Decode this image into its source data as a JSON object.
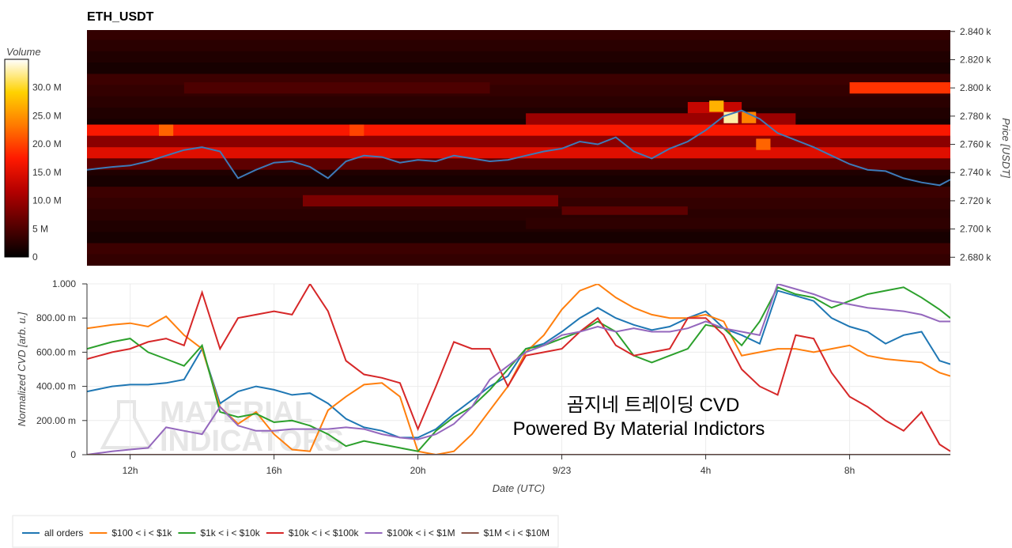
{
  "title": "ETH_USDT",
  "colorbar": {
    "label": "Volume",
    "ticks": [
      "0",
      "5 M",
      "10.0 M",
      "15.0 M",
      "20.0 M",
      "25.0 M",
      "30.0 M"
    ],
    "tick_values": [
      0,
      5,
      10,
      15,
      20,
      25,
      30
    ],
    "max": 35,
    "scale": [
      "#000000",
      "#5a0000",
      "#b40000",
      "#ff1a00",
      "#ff7a00",
      "#ffd200",
      "#ffffff"
    ]
  },
  "heatmap": {
    "ylabel": "Price [USDT]",
    "yticks": [
      "2.840 k",
      "2.820 k",
      "2.800 k",
      "2.780 k",
      "2.760 k",
      "2.740 k",
      "2.720 k",
      "2.700 k",
      "2.680 k"
    ],
    "ytick_values": [
      2840,
      2820,
      2800,
      2780,
      2760,
      2740,
      2720,
      2700,
      2680
    ],
    "ylim": [
      2674,
      2841
    ],
    "price_series_color": "#3d7ab8"
  },
  "cvd": {
    "ylabel": "Normalized CVD [arb. u.]",
    "yticks": [
      "0",
      "200.00 m",
      "400.00 m",
      "600.00 m",
      "800.00 m",
      "1.000"
    ],
    "ytick_values": [
      0,
      0.2,
      0.4,
      0.6,
      0.8,
      1.0
    ],
    "ylim": [
      0,
      1
    ]
  },
  "xaxis": {
    "label": "Date (UTC)",
    "ticks": [
      "12h",
      "16h",
      "20h",
      "9/23",
      "4h",
      "8h"
    ],
    "tick_hours": [
      12,
      16,
      20,
      24,
      28,
      32
    ],
    "xlim": [
      10.8,
      34.8
    ]
  },
  "legend": {
    "placement": "bottom-left",
    "items": [
      {
        "label": "all orders",
        "color": "#1f77b4"
      },
      {
        "label": "$100 < i < $1k",
        "color": "#ff7f0e"
      },
      {
        "label": "$1k < i < $10k",
        "color": "#2ca02c"
      },
      {
        "label": "$10k < i < $100k",
        "color": "#d62728"
      },
      {
        "label": "$100k < i < $1M",
        "color": "#9467bd"
      },
      {
        "label": "$1M < i < $10M",
        "color": "#8c564b"
      }
    ]
  },
  "annotation": {
    "line1": "곰지네 트레이딩 CVD",
    "line2": "Powered By Material Indictors"
  },
  "watermark": {
    "line1": "MATERIAL",
    "line2": "INDICATORS"
  },
  "chart_data": [
    {
      "type": "heatmap",
      "title": "ETH_USDT",
      "colorbar_label": "Volume",
      "ylabel": "Price [USDT]",
      "x_hours": [
        10.8,
        11.5,
        12.0,
        12.5,
        13.0,
        13.5,
        14.0,
        14.5,
        15.0,
        15.5,
        16.0,
        16.5,
        17.0,
        17.5,
        18.0,
        18.5,
        19.0,
        19.5,
        20.0,
        20.5,
        21.0,
        21.5,
        22.0,
        22.5,
        23.0,
        23.5,
        24.0,
        24.5,
        25.0,
        25.5,
        26.0,
        26.5,
        27.0,
        27.5,
        28.0,
        28.5,
        29.0,
        29.5,
        30.0,
        30.5,
        31.0,
        31.5,
        32.0,
        32.5,
        33.0,
        33.5,
        34.0,
        34.5,
        34.8
      ],
      "price": [
        2742,
        2744,
        2745,
        2748,
        2752,
        2756,
        2758,
        2755,
        2736,
        2742,
        2747,
        2748,
        2744,
        2736,
        2748,
        2752,
        2751,
        2747,
        2749,
        2748,
        2752,
        2750,
        2748,
        2749,
        2752,
        2755,
        2757,
        2762,
        2760,
        2765,
        2755,
        2750,
        2757,
        2762,
        2770,
        2780,
        2784,
        2778,
        2768,
        2763,
        2758,
        2752,
        2746,
        2742,
        2741,
        2736,
        2733,
        2731,
        2735
      ],
      "bands": [
        {
          "from": 2766,
          "to": 2774,
          "x_from": 10.8,
          "x_to": 34.8,
          "level": 17
        },
        {
          "from": 2758,
          "to": 2766,
          "x_from": 10.8,
          "x_to": 34.8,
          "level": 9
        },
        {
          "from": 2750,
          "to": 2758,
          "x_from": 10.8,
          "x_to": 34.8,
          "level": 15
        },
        {
          "from": 2742,
          "to": 2750,
          "x_from": 10.8,
          "x_to": 34.8,
          "level": 6
        },
        {
          "from": 2774,
          "to": 2782,
          "x_from": 23.0,
          "x_to": 30.5,
          "level": 10
        },
        {
          "from": 2782,
          "to": 2790,
          "x_from": 27.5,
          "x_to": 29.0,
          "level": 13
        },
        {
          "from": 2796,
          "to": 2804,
          "x_from": 32.0,
          "x_to": 34.8,
          "level": 19
        },
        {
          "from": 2796,
          "to": 2804,
          "x_from": 13.5,
          "x_to": 22.0,
          "level": 5
        },
        {
          "from": 2716,
          "to": 2724,
          "x_from": 16.8,
          "x_to": 23.9,
          "level": 8
        },
        {
          "from": 2710,
          "to": 2716,
          "x_from": 24.0,
          "x_to": 27.5,
          "level": 6
        },
        {
          "from": 2700,
          "to": 2708,
          "x_from": 23.0,
          "x_to": 34.8,
          "level": 3
        }
      ],
      "hotspots": [
        {
          "x": 13.0,
          "price": 2770,
          "level": 22
        },
        {
          "x": 18.3,
          "price": 2770,
          "level": 20
        },
        {
          "x": 28.3,
          "price": 2787,
          "level": 27
        },
        {
          "x": 28.7,
          "price": 2779,
          "level": 33
        },
        {
          "x": 29.2,
          "price": 2779,
          "level": 24
        },
        {
          "x": 29.6,
          "price": 2760,
          "level": 22
        }
      ]
    },
    {
      "type": "line",
      "xlabel": "Date (UTC)",
      "ylabel": "Normalized CVD [arb. u.]",
      "ylim": [
        0,
        1
      ],
      "x_hours": [
        10.8,
        11.5,
        12.0,
        12.5,
        13.0,
        13.5,
        14.0,
        14.5,
        15.0,
        15.5,
        16.0,
        16.5,
        17.0,
        17.5,
        18.0,
        18.5,
        19.0,
        19.5,
        20.0,
        20.5,
        21.0,
        21.5,
        22.0,
        22.5,
        23.0,
        23.5,
        24.0,
        24.5,
        25.0,
        25.5,
        26.0,
        26.5,
        27.0,
        27.5,
        28.0,
        28.5,
        29.0,
        29.5,
        30.0,
        30.5,
        31.0,
        31.5,
        32.0,
        32.5,
        33.0,
        33.5,
        34.0,
        34.5,
        34.8
      ],
      "series": [
        {
          "name": "all orders",
          "values": [
            0.37,
            0.4,
            0.41,
            0.41,
            0.42,
            0.44,
            0.62,
            0.3,
            0.37,
            0.4,
            0.38,
            0.35,
            0.36,
            0.3,
            0.21,
            0.16,
            0.14,
            0.1,
            0.1,
            0.15,
            0.24,
            0.32,
            0.4,
            0.46,
            0.62,
            0.65,
            0.72,
            0.8,
            0.86,
            0.8,
            0.76,
            0.73,
            0.75,
            0.8,
            0.84,
            0.74,
            0.7,
            0.65,
            0.96,
            0.93,
            0.9,
            0.8,
            0.75,
            0.72,
            0.65,
            0.7,
            0.72,
            0.55,
            0.53
          ]
        },
        {
          "name": "$100 < i < $1k",
          "values": [
            0.74,
            0.76,
            0.77,
            0.75,
            0.81,
            0.7,
            0.62,
            0.28,
            0.18,
            0.25,
            0.12,
            0.03,
            0.02,
            0.26,
            0.34,
            0.41,
            0.42,
            0.34,
            0.02,
            0.0,
            0.02,
            0.12,
            0.26,
            0.4,
            0.6,
            0.7,
            0.85,
            0.96,
            1.0,
            0.92,
            0.86,
            0.82,
            0.8,
            0.8,
            0.82,
            0.78,
            0.58,
            0.6,
            0.62,
            0.62,
            0.6,
            0.62,
            0.64,
            0.58,
            0.56,
            0.55,
            0.54,
            0.48,
            0.46
          ]
        },
        {
          "name": "$1k < i < $10k",
          "values": [
            0.62,
            0.66,
            0.68,
            0.6,
            0.56,
            0.52,
            0.64,
            0.25,
            0.22,
            0.24,
            0.19,
            0.2,
            0.17,
            0.12,
            0.05,
            0.08,
            0.06,
            0.04,
            0.02,
            0.14,
            0.22,
            0.28,
            0.38,
            0.5,
            0.62,
            0.64,
            0.68,
            0.72,
            0.78,
            0.72,
            0.58,
            0.54,
            0.58,
            0.62,
            0.76,
            0.74,
            0.64,
            0.78,
            0.98,
            0.94,
            0.92,
            0.86,
            0.9,
            0.94,
            0.96,
            0.98,
            0.92,
            0.85,
            0.8
          ]
        },
        {
          "name": "$10k < i < $100k",
          "values": [
            0.56,
            0.6,
            0.62,
            0.66,
            0.68,
            0.64,
            0.95,
            0.62,
            0.8,
            0.82,
            0.84,
            0.82,
            1.0,
            0.84,
            0.55,
            0.47,
            0.45,
            0.42,
            0.15,
            0.4,
            0.66,
            0.62,
            0.62,
            0.4,
            0.58,
            0.6,
            0.62,
            0.72,
            0.8,
            0.64,
            0.58,
            0.6,
            0.62,
            0.8,
            0.8,
            0.7,
            0.5,
            0.4,
            0.35,
            0.7,
            0.68,
            0.48,
            0.34,
            0.28,
            0.2,
            0.14,
            0.25,
            0.06,
            0.02
          ]
        },
        {
          "name": "$100k < i < $1M",
          "values": [
            0.0,
            0.02,
            0.03,
            0.04,
            0.16,
            0.14,
            0.12,
            0.28,
            0.17,
            0.14,
            0.14,
            0.15,
            0.15,
            0.15,
            0.16,
            0.15,
            0.12,
            0.1,
            0.09,
            0.12,
            0.18,
            0.28,
            0.44,
            0.52,
            0.6,
            0.64,
            0.7,
            0.72,
            0.75,
            0.72,
            0.74,
            0.72,
            0.72,
            0.74,
            0.78,
            0.74,
            0.72,
            0.7,
            1.0,
            0.97,
            0.94,
            0.9,
            0.88,
            0.86,
            0.85,
            0.84,
            0.82,
            0.78,
            0.78
          ]
        },
        {
          "name": "$1M < i < $10M",
          "values": [
            0.0,
            0.0,
            0.0,
            0.0,
            0.0,
            0.0,
            0.0,
            0.0,
            0.0,
            0.0,
            0.0,
            0.0,
            0.0,
            0.0,
            0.0,
            0.0,
            0.0,
            0.0,
            0.0,
            0.0,
            0.0,
            0.0,
            0.0,
            0.0,
            0.0,
            0.0,
            0.0,
            0.0,
            0.0,
            0.0,
            0.0,
            0.0,
            0.0,
            0.0,
            0.0,
            0.0,
            0.0,
            0.0,
            0.0,
            0.0,
            0.0,
            0.0,
            0.0,
            0.0,
            0.0,
            0.0,
            0.0,
            0.0,
            0.0
          ]
        }
      ]
    }
  ]
}
